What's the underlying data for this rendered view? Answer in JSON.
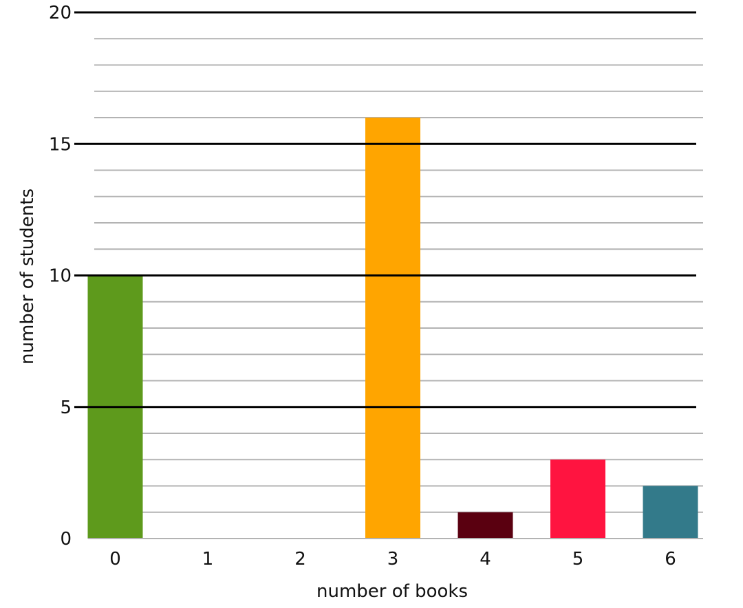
{
  "chart_data": {
    "type": "bar",
    "categories": [
      "0",
      "1",
      "2",
      "3",
      "4",
      "5",
      "6"
    ],
    "values": [
      10,
      0,
      0,
      16,
      1,
      3,
      2
    ],
    "colors": [
      "#5e9a1c",
      "#d0d0d0",
      "#d0d0d0",
      "#ffa500",
      "#5a0010",
      "#ff1440",
      "#337a8a"
    ],
    "xlabel": "number of books",
    "ylabel": "number of students",
    "ylim": [
      0,
      20
    ],
    "y_major_ticks": [
      0,
      5,
      10,
      15,
      20
    ],
    "y_minor_step": 1,
    "grid": true
  }
}
